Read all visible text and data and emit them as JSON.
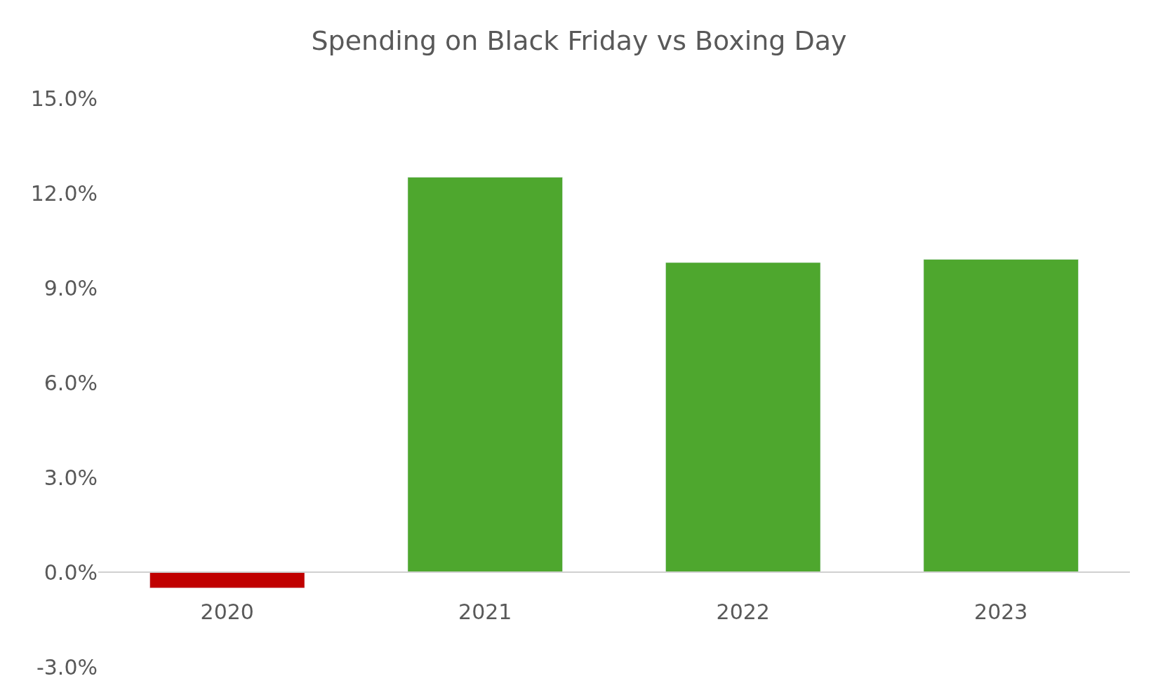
{
  "chart_data": {
    "type": "bar",
    "title": "Spending on Black Friday vs Boxing Day",
    "categories": [
      "2020",
      "2021",
      "2022",
      "2023"
    ],
    "values": [
      -0.5,
      12.5,
      9.8,
      9.9
    ],
    "colors": [
      "#c00000",
      "#4ea72e",
      "#4ea72e",
      "#4ea72e"
    ],
    "ylim": [
      -3,
      15
    ],
    "yticks": [
      {
        "value": -3,
        "label": "-3.0%"
      },
      {
        "value": 0,
        "label": "0.0%"
      },
      {
        "value": 3,
        "label": "3.0%"
      },
      {
        "value": 6,
        "label": "6.0%"
      },
      {
        "value": 9,
        "label": "9.0%"
      },
      {
        "value": 12,
        "label": "12.0%"
      },
      {
        "value": 15,
        "label": "15.0%"
      }
    ]
  }
}
